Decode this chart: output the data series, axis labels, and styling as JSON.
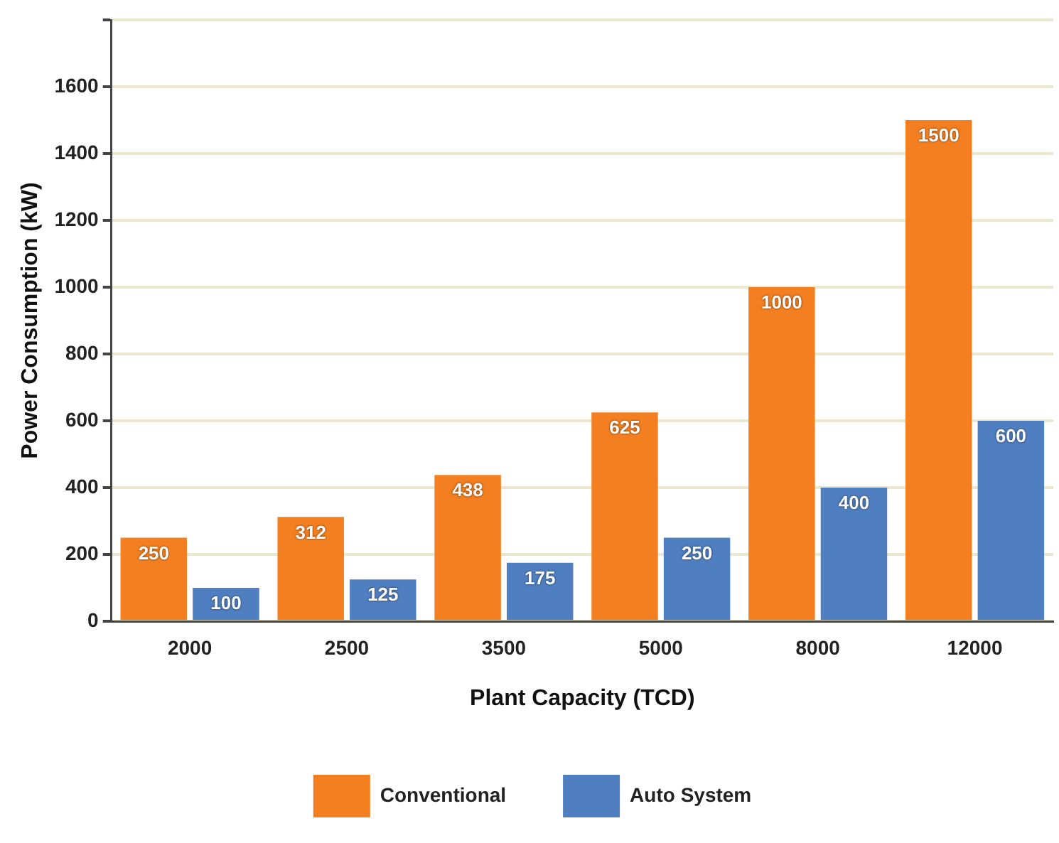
{
  "chart_data": {
    "type": "bar",
    "xlabel": "Plant Capacity (TCD)",
    "ylabel": "Power Consumption (kW)",
    "categories": [
      "2000",
      "2500",
      "3500",
      "5000",
      "8000",
      "12000"
    ],
    "series": [
      {
        "name": "Conventional",
        "color": "#f47f20",
        "values": [
          250,
          312,
          438,
          625,
          1000,
          1500
        ]
      },
      {
        "name": "Auto System",
        "color": "#4f7fc0",
        "values": [
          100,
          125,
          175,
          250,
          400,
          600
        ]
      }
    ],
    "ylim": [
      0,
      1800
    ],
    "yticks": [
      0,
      200,
      400,
      600,
      800,
      1000,
      1200,
      1400,
      1600,
      {
        "value": 1800,
        "label": null
      }
    ],
    "grid": "y",
    "legend": "bottom",
    "data_labels": true
  }
}
